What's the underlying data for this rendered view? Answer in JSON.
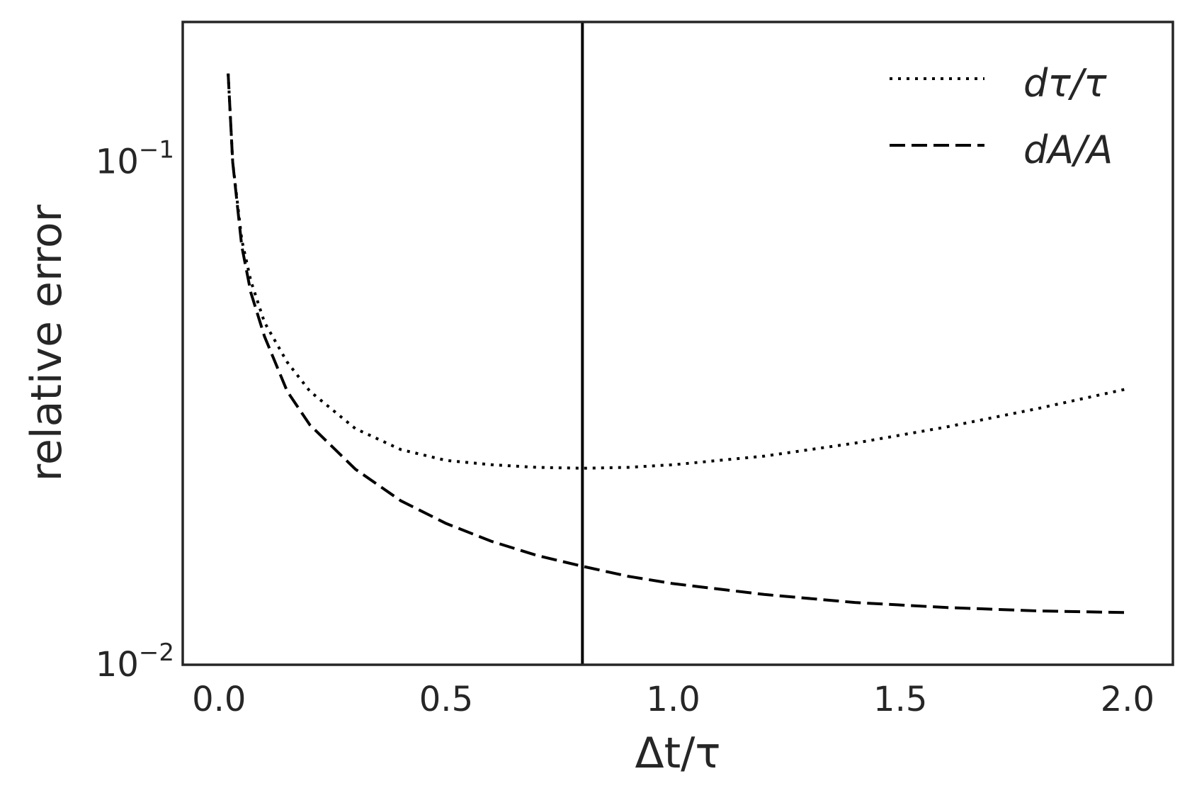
{
  "chart_data": {
    "type": "line",
    "xlabel": "Δt/τ",
    "ylabel": "relative error",
    "xlim": [
      -0.08,
      2.1
    ],
    "ylim": [
      0.01,
      0.19
    ],
    "yscale": "log",
    "grid": false,
    "legend_position": "top-right",
    "x_ticks": [
      0.0,
      0.5,
      1.0,
      1.5,
      2.0
    ],
    "x_tick_labels": [
      "0.0",
      "0.5",
      "1.0",
      "1.5",
      "2.0"
    ],
    "y_ticks": [
      {
        "value": 0.1,
        "base": "10",
        "exponent": "−1"
      },
      {
        "value": 0.01,
        "base": "10",
        "exponent": "−2"
      }
    ],
    "vline": {
      "x": 0.8,
      "color": "#000000"
    },
    "x": [
      0.02,
      0.03,
      0.05,
      0.07,
      0.1,
      0.15,
      0.2,
      0.3,
      0.4,
      0.5,
      0.6,
      0.7,
      0.8,
      0.9,
      1.0,
      1.2,
      1.4,
      1.6,
      1.8,
      2.0
    ],
    "series": [
      {
        "name": "dτ/τ",
        "style": "dotted",
        "color": "#000000",
        "values": [
          0.15,
          0.1,
          0.07,
          0.058,
          0.048,
          0.04,
          0.035,
          0.0295,
          0.0268,
          0.0255,
          0.025,
          0.0247,
          0.0246,
          0.0247,
          0.025,
          0.026,
          0.0276,
          0.0297,
          0.0323,
          0.0354
        ]
      },
      {
        "name": "dA/A",
        "style": "dashed",
        "color": "#000000",
        "values": [
          0.15,
          0.1,
          0.068,
          0.055,
          0.045,
          0.035,
          0.03,
          0.0245,
          0.0212,
          0.0191,
          0.0176,
          0.0165,
          0.0157,
          0.015,
          0.0145,
          0.0138,
          0.0133,
          0.013,
          0.0128,
          0.0127
        ]
      }
    ]
  }
}
